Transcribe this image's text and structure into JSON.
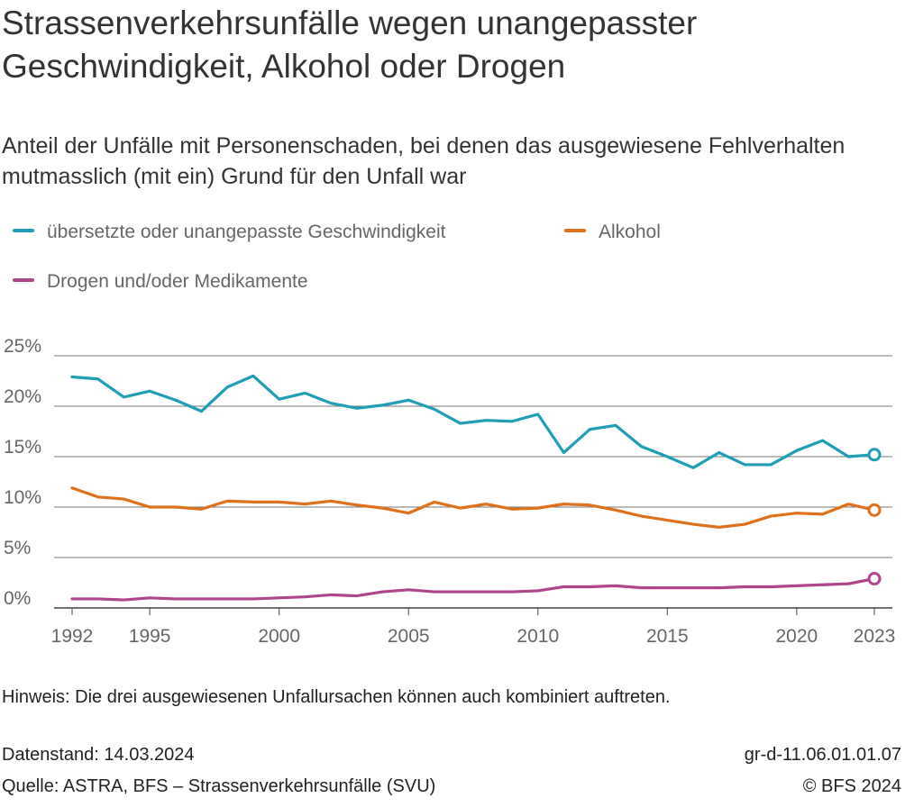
{
  "title": "Strassenverkehrsunfälle wegen unangepasster Geschwindigkeit, Alkohol oder Drogen",
  "subtitle": "Anteil der Unfälle mit Personenschaden, bei denen das ausgewiesene Fehlverhalten mutmasslich (mit ein) Grund für den Unfall war",
  "note": "Hinweis: Die drei ausgewiesenen Unfallursachen können auch kombiniert auftreten.",
  "footer": {
    "datenstand": "Datenstand: 14.03.2024",
    "quelle": "Quelle: ASTRA, BFS – Strassenverkehrsunfälle (SVU)",
    "code": "gr-d-11.06.01.01.07",
    "copyright": "© BFS 2024"
  },
  "colors": {
    "geschwindigkeit": "#1f9eb5",
    "alkohol": "#e0701b",
    "drogen": "#b0458e",
    "grid": "#666666"
  },
  "chart_data": {
    "type": "line",
    "title": "Strassenverkehrsunfälle wegen unangepasster Geschwindigkeit, Alkohol oder Drogen",
    "xlabel": "",
    "ylabel": "",
    "xlim": [
      1992,
      2023
    ],
    "ylim": [
      0,
      25
    ],
    "yticks": [
      0,
      5,
      10,
      15,
      20,
      25
    ],
    "ytick_labels": [
      "0%",
      "5%",
      "10%",
      "15%",
      "20%",
      "25%"
    ],
    "xticks": [
      1992,
      1995,
      2000,
      2005,
      2010,
      2015,
      2020,
      2023
    ],
    "xtick_labels": [
      "1992",
      "1995",
      "2000",
      "2005",
      "2010",
      "2015",
      "2020",
      "2023"
    ],
    "legend_position": "top",
    "x": [
      1992,
      1993,
      1994,
      1995,
      1996,
      1997,
      1998,
      1999,
      2000,
      2001,
      2002,
      2003,
      2004,
      2005,
      2006,
      2007,
      2008,
      2009,
      2010,
      2011,
      2012,
      2013,
      2014,
      2015,
      2016,
      2017,
      2018,
      2019,
      2020,
      2021,
      2022,
      2023
    ],
    "series": [
      {
        "name": "übersetzte oder unangepasste Geschwindigkeit",
        "color": "#1f9eb5",
        "values": [
          22.9,
          22.7,
          20.9,
          21.5,
          20.6,
          19.5,
          21.9,
          23.0,
          20.7,
          21.3,
          20.3,
          19.8,
          20.1,
          20.6,
          19.7,
          18.3,
          18.6,
          18.5,
          19.2,
          15.4,
          17.7,
          18.1,
          16.0,
          15.0,
          13.9,
          15.4,
          14.2,
          14.2,
          15.6,
          16.6,
          15.0,
          15.2
        ]
      },
      {
        "name": "Alkohol",
        "color": "#e0701b",
        "values": [
          11.9,
          11.0,
          10.8,
          10.0,
          10.0,
          9.8,
          10.6,
          10.5,
          10.5,
          10.3,
          10.6,
          10.2,
          9.9,
          9.4,
          10.5,
          9.9,
          10.3,
          9.8,
          9.9,
          10.3,
          10.2,
          9.7,
          9.1,
          8.7,
          8.3,
          8.0,
          8.3,
          9.1,
          9.4,
          9.3,
          10.3,
          9.7
        ]
      },
      {
        "name": "Drogen und/oder Medikamente",
        "color": "#b0458e",
        "values": [
          0.9,
          0.9,
          0.8,
          1.0,
          0.9,
          0.9,
          0.9,
          0.9,
          1.0,
          1.1,
          1.3,
          1.2,
          1.6,
          1.8,
          1.6,
          1.6,
          1.6,
          1.6,
          1.7,
          2.1,
          2.1,
          2.2,
          2.0,
          2.0,
          2.0,
          2.0,
          2.1,
          2.1,
          2.2,
          2.3,
          2.4,
          2.9
        ]
      }
    ]
  }
}
